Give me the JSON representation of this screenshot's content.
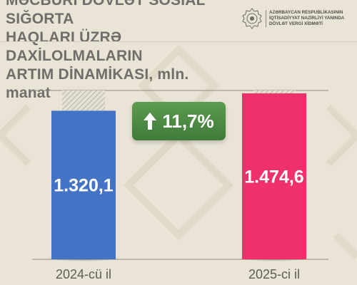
{
  "header": {
    "title": "MƏCBURİ DÖVLƏT SOSİAL SIĞORTA\nHAQLARI ÜZRƏ DAXİLOLMALARIN\nARTIM DİNAMİKASI, mln. manat",
    "org_name": "AZƏRBAYCAN RESPUBLİKASININ\nİQTİSADİYYAT NAZİRLİYİ YANINDA\nDÖVLƏT VERGİ XİDMƏTİ",
    "logo_icon": "state-tax-service-emblem-icon"
  },
  "growth_badge": {
    "value": "11,7%",
    "icon": "arrow-up-icon",
    "color": "#4a8a43"
  },
  "chart_data": {
    "type": "bar",
    "categories": [
      "2024-cü il",
      "2025-ci il"
    ],
    "values": [
      1320.1,
      1474.6
    ],
    "value_labels": [
      "1.320,1",
      "1.474,6"
    ],
    "colors": [
      "#4472c4",
      "#f0306a"
    ],
    "title": "MƏCBURİ DÖVLƏT SOSİAL SIĞORTA HAQLARI ÜZRƏ DAXİLOLMALARIN ARTIM DİNAMİKASI, mln. manat",
    "xlabel": "",
    "ylabel": "",
    "ylim": [
      0,
      1500
    ],
    "grid": false,
    "legend": "none"
  }
}
